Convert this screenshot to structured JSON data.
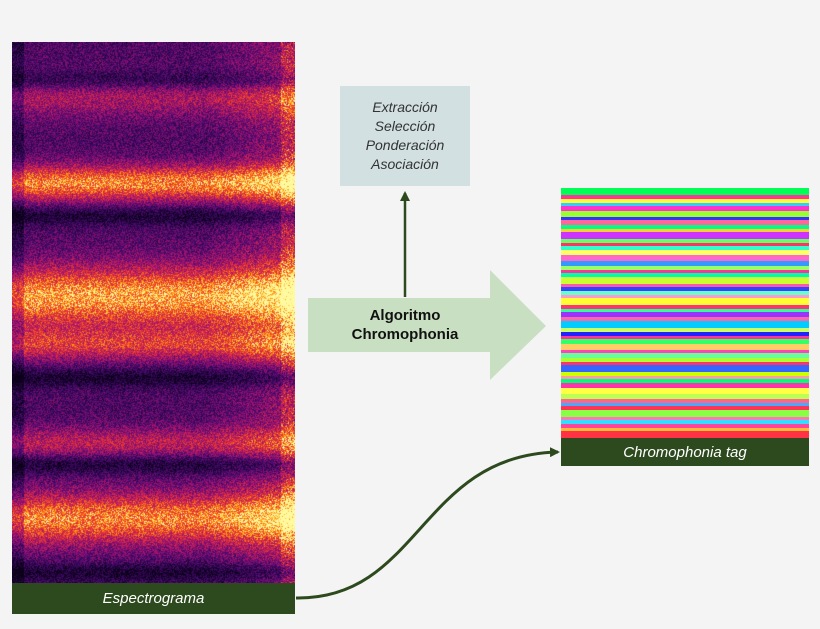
{
  "spectrogram": {
    "caption": "Espectrograma"
  },
  "process_box": {
    "lines": [
      "Extracción",
      "Selección",
      "Ponderación",
      "Asociación"
    ]
  },
  "algorithm_arrow": {
    "line1": "Algoritmo",
    "line2": "Chromophonia"
  },
  "tag": {
    "caption": "Chromophonia tag",
    "stripe_colors": [
      "#00ff55",
      "#ff3399",
      "#ffff33",
      "#33ccff",
      "#ff33cc",
      "#99ff33",
      "#3333ff",
      "#ff6699",
      "#00ff88",
      "#ffcc33",
      "#cc33ff",
      "#66ff66",
      "#ff3366",
      "#33ffcc",
      "#ffff66",
      "#ff66cc",
      "#3399ff",
      "#99ff66",
      "#ff3399",
      "#00ffaa",
      "#ccff33",
      "#ff55aa",
      "#3344ff",
      "#66ffcc",
      "#ff99cc",
      "#ffff33",
      "#ff3377",
      "#33ff99",
      "#9933ff",
      "#ff66aa",
      "#00ccff",
      "#ccff66",
      "#2222ff",
      "#ff3399",
      "#33ff66",
      "#ffcc66",
      "#ff44bb",
      "#66ff99",
      "#aaff33",
      "#ff3366",
      "#3366ff",
      "#ccff00",
      "#ff99aa",
      "#00ff77",
      "#ff33aa",
      "#ffff44",
      "#bbff55",
      "#ff6688",
      "#44aaff",
      "#ff3355",
      "#88ff44",
      "#ff77bb",
      "#33ddff",
      "#ff4499",
      "#ffbb33",
      "#ff3344"
    ]
  },
  "colors": {
    "caption_bar": "#2d4a1e",
    "process_box_bg": "#d2e0e2",
    "arrow_fill": "#c8dfc2",
    "connector": "#2d4a1e",
    "background": "#f4f4f4"
  }
}
